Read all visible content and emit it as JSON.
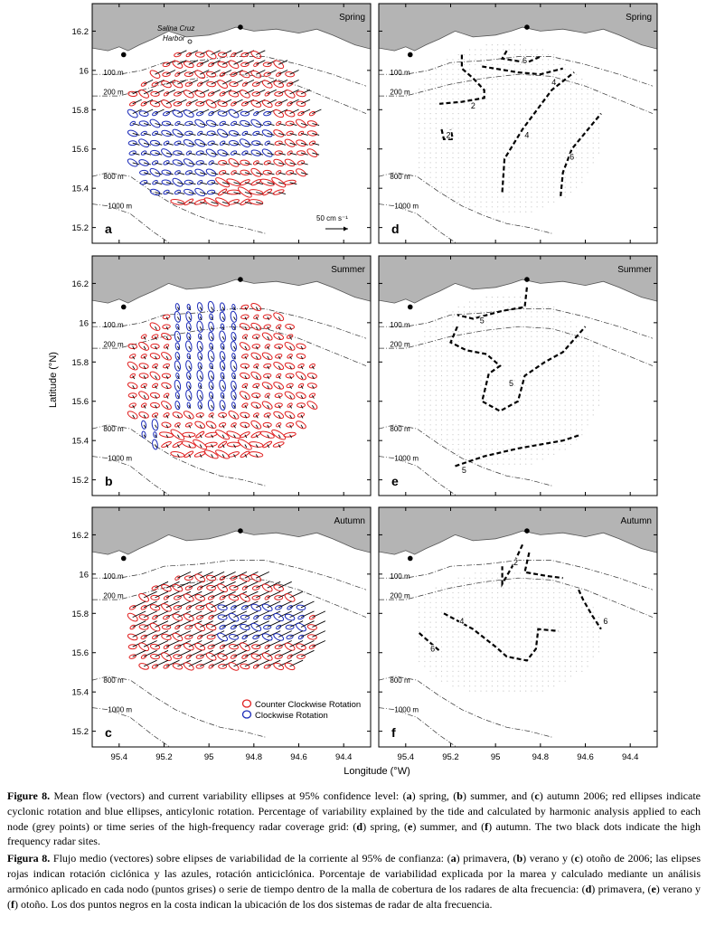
{
  "chart_data": {
    "type": "map-panels",
    "xlabel": "Longitude (°W)",
    "ylabel": "Latitude (°N)",
    "xlim": [
      95.52,
      94.28
    ],
    "ylim": [
      15.12,
      16.34
    ],
    "xticks": [
      "95.4",
      "95.2",
      "95",
      "94.8",
      "94.6",
      "94.4"
    ],
    "yticks": [
      "16.2",
      "16",
      "15.8",
      "15.6",
      "15.4",
      "15.2"
    ],
    "xtick_values": [
      95.4,
      95.2,
      95.0,
      94.8,
      94.6,
      94.4
    ],
    "ytick_values": [
      16.2,
      16.0,
      15.8,
      15.6,
      15.4,
      15.2
    ],
    "harbor_label_line1": "Salina Cruz",
    "harbor_label_line2": "Harbor",
    "radar_sites": [
      [
        95.38,
        16.08
      ],
      [
        94.86,
        16.22
      ]
    ],
    "depth_labels": [
      "100 m",
      "200 m",
      "800 m",
      "1000 m"
    ],
    "scale_label": "50 cm s⁻¹",
    "legend": [
      "Counter Clockwise Rotation",
      "Clockwise Rotation"
    ],
    "colors": {
      "ccw": "#e02020",
      "cw": "#1a2ab8",
      "land": "#b4b4b4",
      "vector": "#000000"
    },
    "panels": [
      {
        "letter": "a",
        "season": "Spring",
        "kind": "ellipses"
      },
      {
        "letter": "d",
        "season": "Spring",
        "kind": "contours",
        "contour_labels": [
          {
            "text": "6",
            "lon": 94.87,
            "lat": 16.05
          },
          {
            "text": "4",
            "lon": 94.74,
            "lat": 15.94
          },
          {
            "text": "2",
            "lon": 95.1,
            "lat": 15.82
          },
          {
            "text": "2",
            "lon": 95.21,
            "lat": 15.67
          },
          {
            "text": "4",
            "lon": 94.86,
            "lat": 15.67
          },
          {
            "text": "6",
            "lon": 94.66,
            "lat": 15.56
          }
        ]
      },
      {
        "letter": "b",
        "season": "Summer",
        "kind": "ellipses"
      },
      {
        "letter": "e",
        "season": "Summer",
        "kind": "contours",
        "contour_labels": [
          {
            "text": "5",
            "lon": 95.06,
            "lat": 16.01
          },
          {
            "text": "5",
            "lon": 94.93,
            "lat": 15.69
          },
          {
            "text": "5",
            "lon": 95.14,
            "lat": 15.25
          }
        ]
      },
      {
        "letter": "c",
        "season": "Autumn",
        "kind": "ellipses"
      },
      {
        "letter": "f",
        "season": "Autumn",
        "kind": "contours",
        "contour_labels": [
          {
            "text": "2",
            "lon": 94.91,
            "lat": 16.06
          },
          {
            "text": "4",
            "lon": 95.15,
            "lat": 15.76
          },
          {
            "text": "6",
            "lon": 94.51,
            "lat": 15.76
          },
          {
            "text": "6",
            "lon": 95.28,
            "lat": 15.62
          }
        ]
      }
    ]
  },
  "caption": {
    "en_label": "Figure 8.",
    "en_p1": " Mean flow (vectors) and current variability ellipses at 95% confidence level: (",
    "en_a": "a",
    "en_p2": ") spring, (",
    "en_b": "b",
    "en_p3": ") summer, and (",
    "en_c": "c",
    "en_p4": ") autumn 2006; red ellipses indicate cyclonic rotation and blue ellipses, anticylonic rotation. Percentage of variability explained by the tide and calculated by harmonic analysis applied to each node (grey points) or time series of the high-frequency radar coverage grid: (",
    "en_d": "d",
    "en_p5": ") spring, (",
    "en_e": "e",
    "en_p6": ") summer, and (",
    "en_f": "f",
    "en_p7": ") autumn. The two black dots indicate the high frequency radar sites.",
    "es_label": "Figura 8.",
    "es_p1": " Flujo medio (vectores) sobre elipses de variabilidad de la corriente al 95% de confianza: (",
    "es_a": "a",
    "es_p2": ") primavera, (",
    "es_b": "b",
    "es_p3": ") verano y (",
    "es_c": "c",
    "es_p4": ") otoño de 2006; las elipses rojas indican rotación ciclónica y las azules, rotación anticiclónica. Porcentaje de variabilidad explicada por la marea y calculado mediante un análisis armónico aplicado en cada nodo (puntos grises) o serie de tiempo dentro de la malla de cobertura de los radares de alta frecuencia: (",
    "es_d": "d",
    "es_p5": ") primavera, (",
    "es_e": "e",
    "es_p6": ") verano y (",
    "es_f": "f",
    "es_p7": ") otoño. Los dos puntos negros en la costa indican la ubicación de los dos sistemas de radar de alta frecuencia."
  }
}
